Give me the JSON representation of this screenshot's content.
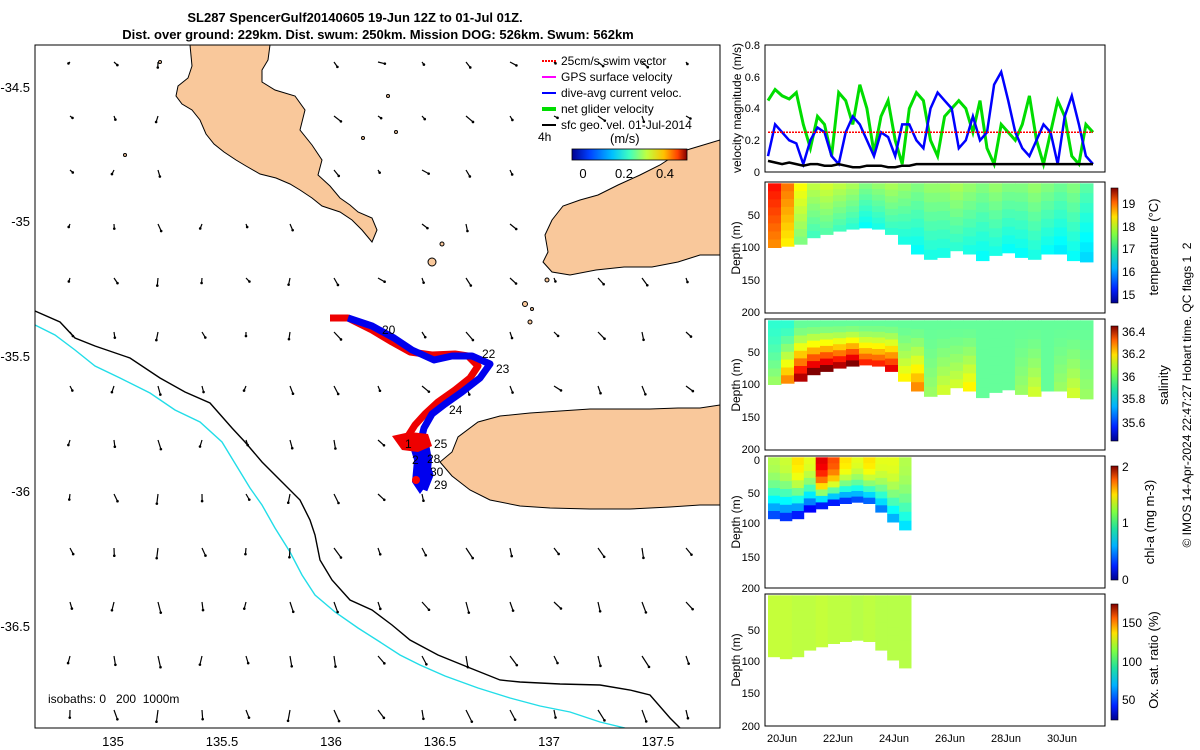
{
  "title": {
    "line1": "SL287 SpencerGulf20140605 19-Jun 12Z to 01-Jul 01Z.",
    "line2": "Dist. over ground: 229km. Dist. swum: 250km. Mission DOG: 526km. Swum: 562km"
  },
  "map": {
    "x_ticks": [
      "135",
      "135.5",
      "136",
      "136.5",
      "137",
      "137.5"
    ],
    "y_ticks": [
      "-34.5",
      "-35",
      "-35.5",
      "-36",
      "-36.5"
    ],
    "legend": [
      {
        "label": "25cm/s swim vector",
        "color": "#ff0000"
      },
      {
        "label": "GPS surface velocity",
        "color": "#ff00ff"
      },
      {
        "label": "dive-avg current veloc.",
        "color": "#0000ff"
      },
      {
        "label": "net glider velocity",
        "color": "#00dd00"
      },
      {
        "label": "sfc geo. vel. 01-Jul-2014",
        "color": "#000000"
      }
    ],
    "colorbar_prefix": "4h",
    "colorbar_unit": "(m/s)",
    "colorbar_ticks": [
      "0",
      "0.2",
      "0.4"
    ],
    "day_labels": [
      "20",
      "22",
      "23",
      "24",
      "25",
      "28",
      "30",
      "29",
      "1",
      "2"
    ],
    "isobath_label": "isobaths: 0   200  1000m",
    "land_color": "#f9c89b",
    "track_red": "#ee0000",
    "track_blue": "#0000ee",
    "isobath_cyan": "#22dde8"
  },
  "side": {
    "x_ticks": [
      "20Jun",
      "22Jun",
      "24Jun",
      "26Jun",
      "28Jun",
      "30Jun"
    ],
    "panels": [
      {
        "ylabel": "velocity magnitude (m/s)",
        "yticks": [
          "0",
          "0.2",
          "0.4",
          "0.6",
          "0.8"
        ]
      },
      {
        "ylabel": "Depth (m)",
        "yticks": [
          "50",
          "100",
          "150",
          "200"
        ],
        "cbar_label": "temperature (°C)",
        "cbar_ticks": [
          "15",
          "16",
          "17",
          "18",
          "19"
        ]
      },
      {
        "ylabel": "Depth (m)",
        "yticks": [
          "50",
          "100",
          "150",
          "200"
        ],
        "cbar_label": "salinity",
        "cbar_ticks": [
          "35.6",
          "35.8",
          "36",
          "36.2",
          "36.4"
        ]
      },
      {
        "ylabel": "Depth (m)",
        "yticks": [
          "0",
          "50",
          "100",
          "150",
          "200"
        ],
        "cbar_label": "chl-a (mg m-3)",
        "cbar_ticks": [
          "0",
          "1",
          "2"
        ]
      },
      {
        "ylabel": "Depth (m)",
        "yticks": [
          "50",
          "100",
          "150",
          "200"
        ],
        "cbar_label": "Ox. sat. ratio (%)",
        "cbar_ticks": [
          "50",
          "100",
          "150"
        ]
      }
    ],
    "credit": "© IMOS 14-Apr-2024 22:47:27 Hobart time. QC flags 1  2"
  },
  "chart_data": [
    {
      "type": "line",
      "title": "",
      "xlabel": "",
      "ylabel": "velocity magnitude (m/s)",
      "x_range": [
        "19-Jun-2014 12:00",
        "01-Jul-2014 01:00"
      ],
      "ylim": [
        0,
        0.8
      ],
      "series": [
        {
          "name": "net glider velocity",
          "color": "#00dd00",
          "values": [
            0.45,
            0.52,
            0.48,
            0.46,
            0.5,
            0.3,
            0.15,
            0.35,
            0.3,
            0.1,
            0.5,
            0.45,
            0.3,
            0.55,
            0.4,
            0.12,
            0.35,
            0.45,
            0.2,
            0.05,
            0.4,
            0.5,
            0.45,
            0.2,
            0.1,
            0.35,
            0.4,
            0.45,
            0.4,
            0.25,
            0.45,
            0.15,
            0.05,
            0.3,
            0.25,
            0.2,
            0.3,
            0.48,
            0.2,
            0.05,
            0.25,
            0.45,
            0.35,
            0.1,
            0.05,
            0.3,
            0.25
          ]
        },
        {
          "name": "dive-avg current veloc.",
          "color": "#0000ff",
          "values": [
            0.1,
            0.3,
            0.25,
            0.2,
            0.18,
            0.05,
            0.2,
            0.28,
            0.25,
            0.1,
            0.05,
            0.25,
            0.35,
            0.3,
            0.2,
            0.1,
            0.25,
            0.22,
            0.1,
            0.3,
            0.3,
            0.2,
            0.15,
            0.4,
            0.5,
            0.45,
            0.4,
            0.15,
            0.2,
            0.35,
            0.2,
            0.25,
            0.55,
            0.63,
            0.45,
            0.25,
            0.15,
            0.1,
            0.2,
            0.3,
            0.25,
            0.05,
            0.35,
            0.48,
            0.3,
            0.1,
            0.05
          ]
        },
        {
          "name": "25cm/s swim vector",
          "color": "#ff0000",
          "values": [
            0.25,
            0.25,
            0.25,
            0.25,
            0.25,
            0.25,
            0.25,
            0.25,
            0.25,
            0.25,
            0.25,
            0.25,
            0.25,
            0.25,
            0.25,
            0.25,
            0.25,
            0.25,
            0.25,
            0.25,
            0.25,
            0.25,
            0.25,
            0.25,
            0.25,
            0.25,
            0.25,
            0.25,
            0.25,
            0.25,
            0.25,
            0.25,
            0.25,
            0.25,
            0.25,
            0.25,
            0.25,
            0.25,
            0.25,
            0.25,
            0.25,
            0.25,
            0.25,
            0.25,
            0.25,
            0.25,
            0.25
          ]
        },
        {
          "name": "sfc geo. vel.",
          "color": "#000000",
          "values": [
            0.07,
            0.06,
            0.05,
            0.06,
            0.05,
            0.04,
            0.05,
            0.05,
            0.04,
            0.04,
            0.05,
            0.04,
            0.03,
            0.03,
            0.04,
            0.04,
            0.04,
            0.03,
            0.03,
            0.04,
            0.04,
            0.05,
            0.05,
            0.05,
            0.05,
            0.05,
            0.05,
            0.05,
            0.05,
            0.05,
            0.05,
            0.05,
            0.05,
            0.05,
            0.05,
            0.05,
            0.05,
            0.05,
            0.05,
            0.05,
            0.05,
            0.05,
            0.05,
            0.05,
            0.05,
            0.05,
            0.05
          ]
        }
      ]
    },
    {
      "type": "heatmap",
      "ylabel": "Depth (m)",
      "cbar_label": "temperature (°C)",
      "clim": [
        14.5,
        19.5
      ],
      "ylim": [
        200,
        0
      ],
      "bottom_depth": [
        100,
        98,
        95,
        85,
        80,
        75,
        72,
        70,
        72,
        80,
        95,
        110,
        118,
        115,
        105,
        110,
        120,
        112,
        108,
        115,
        118,
        110,
        110,
        120,
        122
      ],
      "surface_values": [
        18.8,
        18.3,
        17.6,
        17.3,
        17.4,
        17.3,
        17.2,
        17.0,
        17.1,
        17.2,
        17.1,
        17.0,
        17.1,
        17.1,
        17.2,
        17.1,
        17.0,
        17.1,
        17.0,
        17.0,
        17.1,
        17.0,
        16.9,
        17.0,
        16.8
      ]
    },
    {
      "type": "heatmap",
      "ylabel": "Depth (m)",
      "cbar_label": "salinity",
      "clim": [
        35.5,
        36.45
      ],
      "ylim": [
        200,
        0
      ],
      "bottom_depth": [
        100,
        98,
        95,
        85,
        80,
        75,
        72,
        70,
        72,
        80,
        95,
        110,
        118,
        115,
        105,
        110,
        120,
        112,
        108,
        115,
        118,
        110,
        110,
        120,
        122
      ],
      "surface_values": [
        35.9,
        35.9,
        35.95,
        35.95,
        35.95,
        35.95,
        35.95,
        35.95,
        35.95,
        35.95,
        35.95,
        35.95,
        35.95,
        35.95,
        35.95,
        35.95,
        35.95,
        35.95,
        35.95,
        35.95,
        35.95,
        35.95,
        35.95,
        35.95,
        35.95
      ],
      "peak_values": [
        36.0,
        36.2,
        36.4,
        36.45,
        36.45,
        36.4,
        36.45,
        36.3,
        36.3,
        36.35,
        36.1,
        36.2,
        36.0,
        36.05,
        36.05,
        36.1,
        35.95,
        35.95,
        35.95,
        36.0,
        36.05,
        35.95,
        36.0,
        36.05,
        36.0
      ]
    },
    {
      "type": "heatmap",
      "ylabel": "Depth (m)",
      "cbar_label": "chl-a (mg m-3)",
      "clim": [
        0,
        2
      ],
      "ylim": [
        200,
        0
      ],
      "bottom_depth": [
        95,
        98,
        95,
        85,
        80,
        75,
        72,
        70,
        72,
        85,
        100,
        112
      ],
      "surface_values": [
        1.1,
        1.15,
        1.3,
        1.2,
        1.8,
        1.6,
        1.3,
        1.2,
        1.3,
        1.2,
        1.2,
        1.1
      ],
      "deep_values": [
        0.4,
        0.35,
        0.3,
        0.25,
        0.3,
        0.3,
        0.35,
        0.4,
        0.45,
        0.5,
        0.6,
        0.7
      ]
    },
    {
      "type": "heatmap",
      "ylabel": "Depth (m)",
      "cbar_label": "Ox. sat. ratio (%)",
      "clim": [
        20,
        175
      ],
      "ylim": [
        200,
        0
      ],
      "bottom_depth": [
        95,
        98,
        95,
        85,
        80,
        75,
        72,
        70,
        72,
        85,
        100,
        112
      ],
      "surface_values": [
        108,
        108,
        107,
        107,
        108,
        107,
        107,
        106,
        107,
        106,
        106,
        106
      ]
    }
  ]
}
